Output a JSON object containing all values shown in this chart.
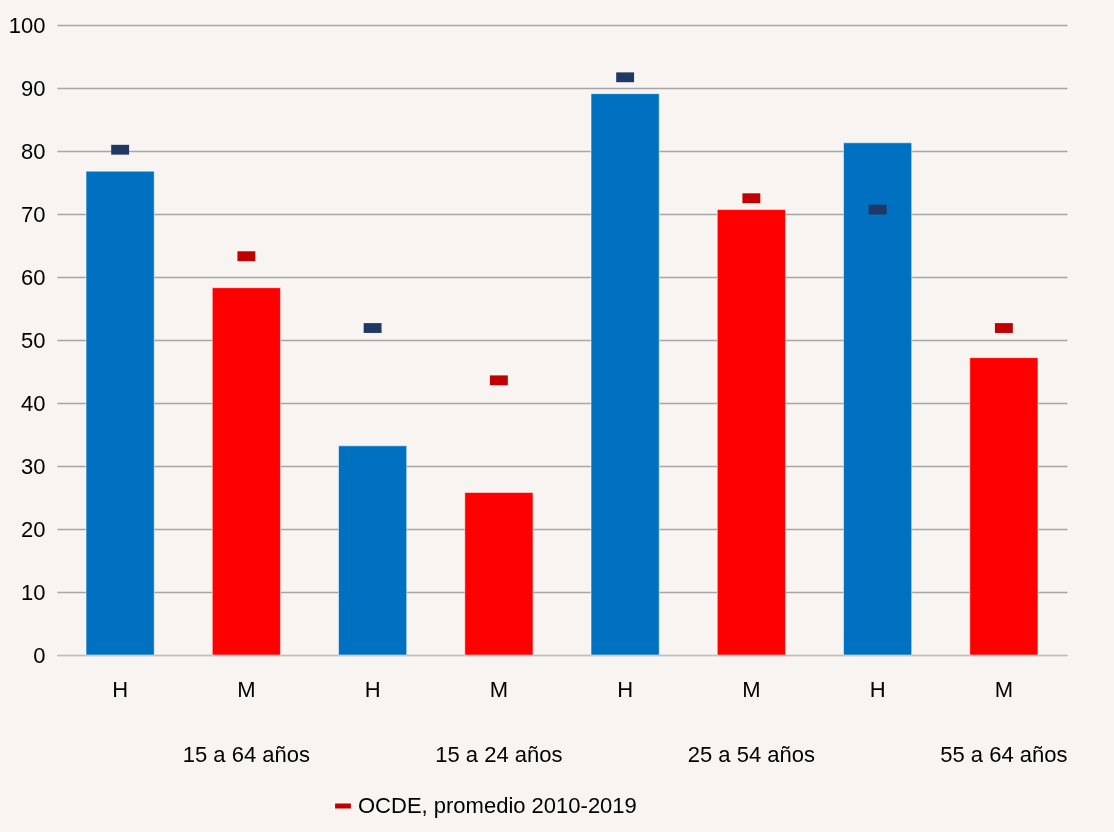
{
  "chart_data": {
    "type": "bar",
    "categories": [
      "H",
      "M",
      "H",
      "M",
      "H",
      "M",
      "H",
      "M"
    ],
    "annotations": [
      "15 a 64 años",
      "15 a 24 años",
      "25 a 54 años",
      "55 a 64 años"
    ],
    "series": [
      {
        "type": "bar",
        "colors": [
          "#0070c0",
          "#ff0000",
          "#0070c0",
          "#ff0000",
          "#0070c0",
          "#ff0000",
          "#0070c0",
          "#ff0000"
        ],
        "values": [
          76.8,
          58.3,
          33.2,
          25.8,
          89.1,
          70.7,
          81.3,
          47.2
        ]
      },
      {
        "type": "scatter",
        "name": "OCDE, promedio 2010-2019",
        "color": "#c00000",
        "colors": [
          "#203864",
          "#c00000",
          "#203864",
          "#c00000",
          "#203864",
          "#c00000",
          "#203864",
          "#c00000"
        ],
        "values": [
          80.2,
          63.3,
          51.9,
          43.6,
          91.7,
          72.5,
          70.7,
          51.9
        ]
      }
    ],
    "ylim": [
      0,
      100
    ],
    "yticks": [
      0,
      10,
      20,
      30,
      40,
      50,
      60,
      70,
      80,
      90,
      100
    ],
    "grid": "y",
    "legend": "bottom"
  }
}
